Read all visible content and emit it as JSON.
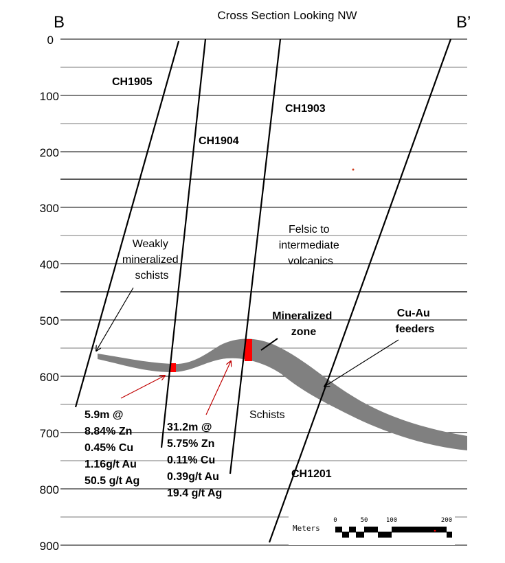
{
  "title": "Cross Section Looking NW",
  "section_start": "B",
  "section_end": "B’",
  "depth_labels": [
    "0",
    "100",
    "200",
    "300",
    "400",
    "500",
    "600",
    "700",
    "800",
    "900"
  ],
  "holes": {
    "ch1905": "CH1905",
    "ch1904": "CH1904",
    "ch1903": "CH1903",
    "ch1201": "CH1201"
  },
  "labels": {
    "weakly": [
      "Weakly",
      "mineralized",
      "schists"
    ],
    "felsic": [
      "Felsic to",
      "intermediate",
      "volcanics"
    ],
    "mineralized_zone": [
      "Mineralized",
      "zone"
    ],
    "feeders": [
      "Cu-Au",
      "feeders"
    ],
    "schists": "Schists"
  },
  "intercept1": [
    "5.9m @",
    "8.84% Zn",
    "0.45% Cu",
    "1.16g/t Au",
    "50.5 g/t Ag"
  ],
  "intercept2": [
    "31.2m @",
    "5.75% Zn",
    "0.11% Cu",
    "0.39g/t Au",
    "19.4 g/t Ag"
  ],
  "scale": {
    "label": "Meters",
    "ticks": [
      "0",
      "50",
      "100",
      "200"
    ]
  },
  "colors": {
    "zone": "#808080",
    "highlight": "#ff0000",
    "arrow": "#c00000"
  }
}
